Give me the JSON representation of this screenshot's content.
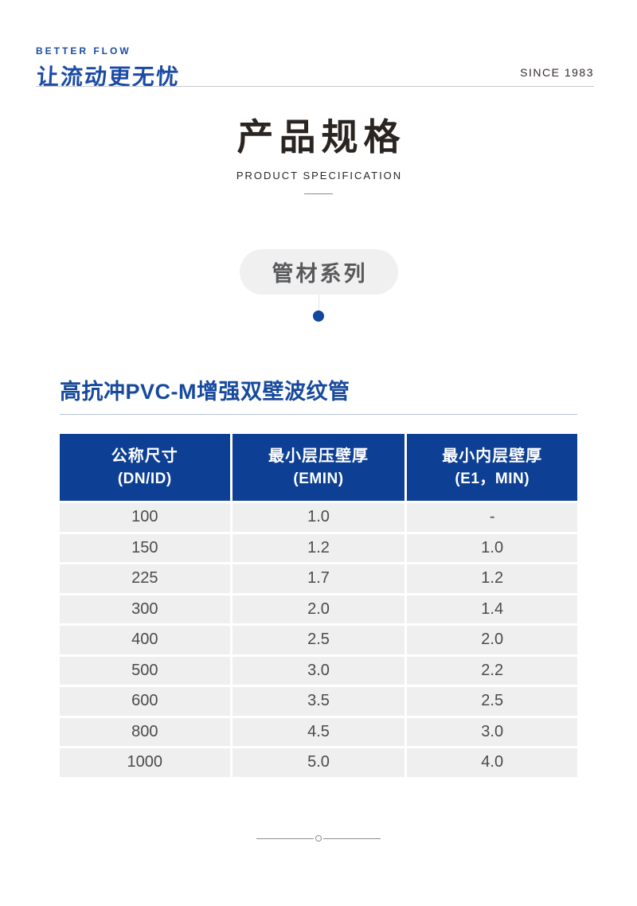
{
  "brand": {
    "tagline_en": "BETTER FLOW",
    "wordmark_zh": "让流动更无忧",
    "since": "SINCE 1983"
  },
  "title": {
    "zh": "产品规格",
    "en": "PRODUCT SPECIFICATION"
  },
  "series_badge": {
    "label": "管材系列"
  },
  "section": {
    "heading": "高抗冲PVC-M增强双壁波纹管"
  },
  "spec_table": {
    "columns": [
      {
        "title": "公称尺寸",
        "subtitle": "(DN/ID)"
      },
      {
        "title": "最小层压壁厚",
        "subtitle": "(EMIN)"
      },
      {
        "title": "最小内层壁厚",
        "subtitle": "(E1，MIN)"
      }
    ],
    "rows": [
      [
        "100",
        "1.0",
        "-"
      ],
      [
        "150",
        "1.2",
        "1.0"
      ],
      [
        "225",
        "1.7",
        "1.2"
      ],
      [
        "300",
        "2.0",
        "1.4"
      ],
      [
        "400",
        "2.5",
        "2.0"
      ],
      [
        "500",
        "3.0",
        "2.2"
      ],
      [
        "600",
        "3.5",
        "2.5"
      ],
      [
        "800",
        "4.5",
        "3.0"
      ],
      [
        "1000",
        "5.0",
        "4.0"
      ]
    ]
  },
  "colors": {
    "brand_blue": "#1c4ba4",
    "table_header_blue": "#0d4094",
    "section_heading_blue": "#17499d",
    "dot_blue": "#11479c",
    "row_gray": "#efefef",
    "text_dark": "#2b2522",
    "cell_text": "#4b4b4c"
  }
}
